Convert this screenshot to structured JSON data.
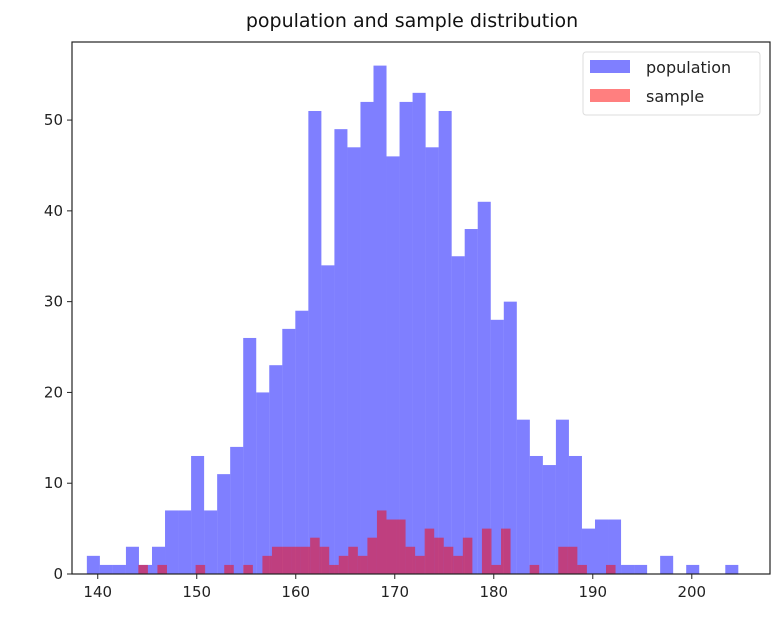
{
  "chart_data": {
    "type": "bar",
    "title": "population and sample distribution",
    "xlabel": "",
    "ylabel": "",
    "xlim": [
      137.4,
      207.9
    ],
    "ylim": [
      0,
      58.6
    ],
    "grid": false,
    "legend_placement": "top-right",
    "x_ticks": [
      "140",
      "150",
      "160",
      "170",
      "180",
      "190",
      "200"
    ],
    "y_ticks": [
      "0",
      "10",
      "20",
      "30",
      "40",
      "50"
    ],
    "series": [
      {
        "name": "population",
        "color": "#0000ff",
        "alpha": 0.5,
        "bin_range": [
          138.9,
          204.7
        ],
        "counts": [
          2,
          1,
          1,
          3,
          1,
          3,
          7,
          7,
          13,
          7,
          11,
          14,
          26,
          20,
          23,
          27,
          29,
          51,
          34,
          49,
          47,
          52,
          56,
          46,
          52,
          53,
          47,
          51,
          35,
          38,
          41,
          28,
          30,
          17,
          13,
          12,
          17,
          13,
          5,
          6,
          6,
          1,
          1,
          0,
          2,
          0,
          1,
          0,
          0,
          1
        ]
      },
      {
        "name": "sample",
        "color": "#ff0000",
        "alpha": 0.5,
        "bin_range": [
          144.1,
          192.3
        ],
        "counts": [
          1,
          0,
          1,
          0,
          0,
          0,
          1,
          0,
          0,
          1,
          0,
          1,
          0,
          2,
          3,
          3,
          3,
          3,
          4,
          3,
          1,
          2,
          3,
          2,
          4,
          7,
          6,
          6,
          3,
          2,
          5,
          4,
          3,
          2,
          4,
          0,
          5,
          1,
          5,
          0,
          0,
          1,
          0,
          0,
          3,
          3,
          1,
          0,
          0,
          1
        ]
      }
    ]
  }
}
